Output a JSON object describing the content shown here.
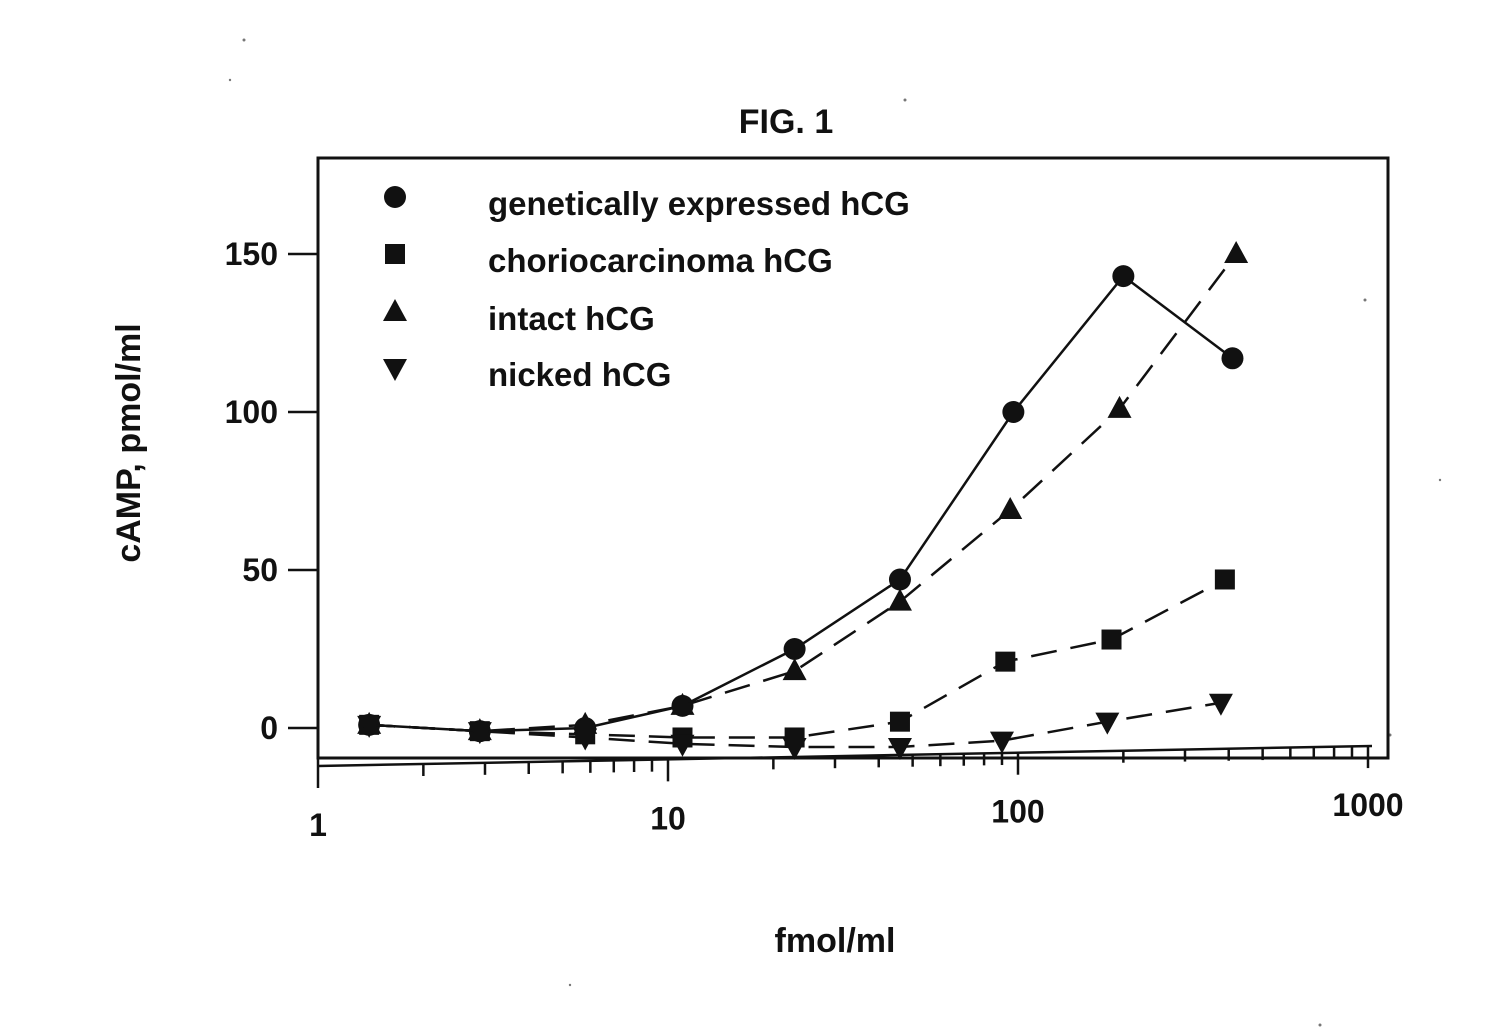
{
  "figure": {
    "title": "FIG. 1"
  },
  "chart_data": {
    "type": "line",
    "title": "FIG. 1",
    "xlabel": "fmol/ml",
    "ylabel": "cAMP, pmol/ml",
    "xscale": "log",
    "xlim": [
      1,
      1000
    ],
    "ylim": [
      -10,
      180
    ],
    "x_ticks": [
      1,
      10,
      100,
      1000
    ],
    "x_tick_labels": [
      "1",
      "10",
      "100",
      "1000"
    ],
    "y_ticks": [
      0,
      50,
      100,
      150
    ],
    "y_tick_labels": [
      "0",
      "50",
      "100",
      "150"
    ],
    "grid": false,
    "legend_position": "top-left",
    "series": [
      {
        "name": "genetically expressed hCG",
        "marker": "circle",
        "line_style": "solid",
        "points": [
          {
            "x": 1.4,
            "y": 1
          },
          {
            "x": 2.9,
            "y": -1
          },
          {
            "x": 5.8,
            "y": 0
          },
          {
            "x": 11,
            "y": 7
          },
          {
            "x": 23,
            "y": 25
          },
          {
            "x": 46,
            "y": 47
          },
          {
            "x": 97,
            "y": 100
          },
          {
            "x": 200,
            "y": 143
          },
          {
            "x": 410,
            "y": 117
          }
        ]
      },
      {
        "name": "choriocarcinoma hCG",
        "marker": "square",
        "line_style": "dashed",
        "points": [
          {
            "x": 1.4,
            "y": 1
          },
          {
            "x": 2.9,
            "y": -1
          },
          {
            "x": 5.8,
            "y": -2
          },
          {
            "x": 11,
            "y": -3
          },
          {
            "x": 23,
            "y": -3
          },
          {
            "x": 46,
            "y": 2
          },
          {
            "x": 92,
            "y": 21
          },
          {
            "x": 185,
            "y": 28
          },
          {
            "x": 390,
            "y": 47
          }
        ]
      },
      {
        "name": "intact hCG",
        "marker": "triangle-up",
        "line_style": "dashed",
        "points": [
          {
            "x": 1.4,
            "y": 1
          },
          {
            "x": 2.9,
            "y": -1
          },
          {
            "x": 5.8,
            "y": 1
          },
          {
            "x": 11,
            "y": 7
          },
          {
            "x": 23,
            "y": 18
          },
          {
            "x": 46,
            "y": 40
          },
          {
            "x": 95,
            "y": 69
          },
          {
            "x": 195,
            "y": 101
          },
          {
            "x": 420,
            "y": 150
          }
        ]
      },
      {
        "name": "nicked hCG",
        "marker": "triangle-down",
        "line_style": "dashed",
        "points": [
          {
            "x": 1.4,
            "y": 1
          },
          {
            "x": 2.9,
            "y": -1
          },
          {
            "x": 5.8,
            "y": -3
          },
          {
            "x": 11,
            "y": -5
          },
          {
            "x": 23,
            "y": -6
          },
          {
            "x": 46,
            "y": -6
          },
          {
            "x": 90,
            "y": -4
          },
          {
            "x": 180,
            "y": 2
          },
          {
            "x": 380,
            "y": 8
          }
        ]
      }
    ]
  }
}
